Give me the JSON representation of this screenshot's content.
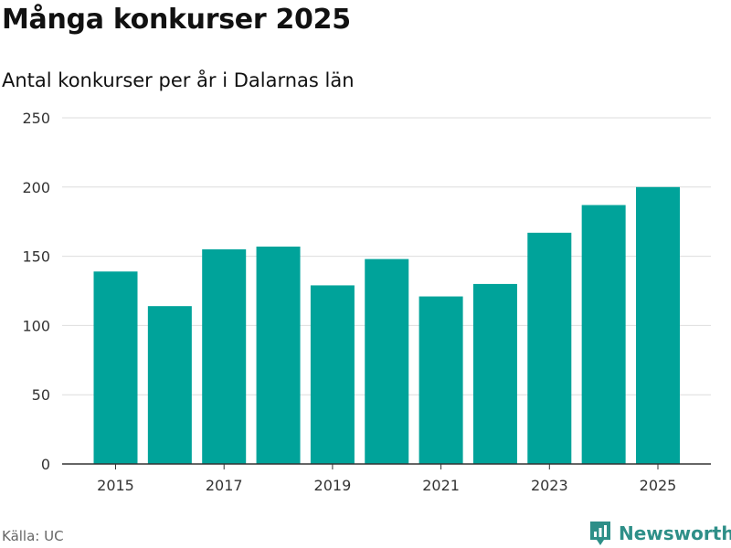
{
  "title": "Många konkurser 2025",
  "subtitle": "Antal konkurser per år i Dalarnas län",
  "source": "Källa: UC",
  "brand": "Newsworthy",
  "colors": {
    "bar": "#00a39a",
    "brand": "#2e8f88",
    "grid": "#dddddd",
    "axis": "#333333"
  },
  "chart_data": {
    "type": "bar",
    "title": "Många konkurser 2025",
    "subtitle": "Antal konkurser per år i Dalarnas län",
    "xlabel": "",
    "ylabel": "",
    "categories": [
      "2015",
      "2016",
      "2017",
      "2018",
      "2019",
      "2020",
      "2021",
      "2022",
      "2023",
      "2024",
      "2025"
    ],
    "values": [
      139,
      114,
      155,
      157,
      129,
      148,
      121,
      130,
      167,
      187,
      200
    ],
    "x_tick_labels": [
      "2015",
      "2017",
      "2019",
      "2021",
      "2023",
      "2025"
    ],
    "y_ticks": [
      0,
      50,
      100,
      150,
      200,
      250
    ],
    "ylim": [
      0,
      250
    ],
    "grid": true,
    "legend": "none"
  }
}
